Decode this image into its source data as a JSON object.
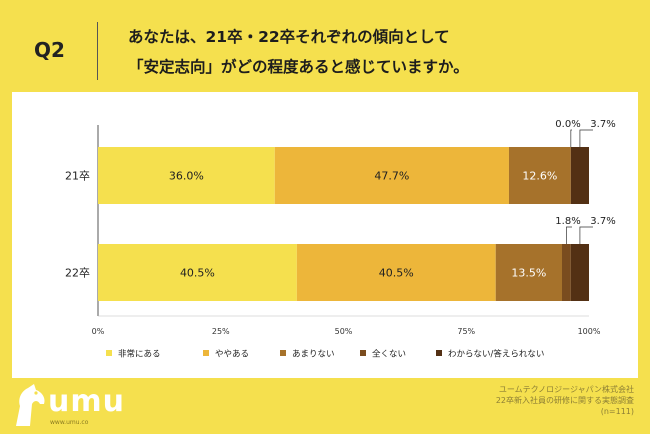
{
  "header": {
    "qnum": "Q2",
    "title_lines": [
      "あなたは、21卒・22卒それぞれの傾向として",
      "「安定志向」がどの程度あると感じていますか。"
    ]
  },
  "chart_data": {
    "type": "bar",
    "orientation": "horizontal",
    "stacked": true,
    "categories": [
      "21卒",
      "22卒"
    ],
    "series": [
      {
        "name": "非常にある",
        "values": [
          36.0,
          40.5
        ],
        "labels": [
          "36.0%",
          "40.5%"
        ],
        "color": "#F5E04E"
      },
      {
        "name": "ややある",
        "values": [
          47.7,
          40.5
        ],
        "labels": [
          "47.7%",
          "40.5%"
        ],
        "color": "#EDB63A"
      },
      {
        "name": "あまりない",
        "values": [
          12.6,
          13.5
        ],
        "labels": [
          "12.6%",
          "13.5%"
        ],
        "color": "#A6722B"
      },
      {
        "name": "全くない",
        "values": [
          0.0,
          1.8
        ],
        "labels": [
          "0.0%",
          "1.8%"
        ],
        "color": "#7A4C1F"
      },
      {
        "name": "わからない/答えられない",
        "values": [
          3.7,
          3.7
        ],
        "labels": [
          "3.7%",
          "3.7%"
        ],
        "color": "#533014"
      }
    ],
    "xlim": [
      0,
      100
    ],
    "xticks": [
      "0%",
      "25%",
      "50%",
      "75%",
      "100%"
    ],
    "legend_position": "bottom",
    "title": "",
    "xlabel": "",
    "ylabel": ""
  },
  "footer": {
    "logo_text": "umu",
    "logo_url": "www.umu.co",
    "source_lines": [
      "ユームテクノロジージャパン株式会社",
      "22卒新入社員の研修に関する実態調査",
      "(n=111)"
    ]
  }
}
